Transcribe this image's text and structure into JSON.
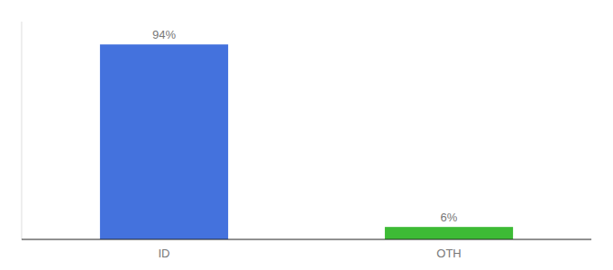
{
  "chart_data": {
    "type": "bar",
    "categories": [
      "ID",
      "OTH"
    ],
    "values": [
      94,
      6
    ],
    "value_labels": [
      "94%",
      "6%"
    ],
    "colors": [
      "#4472dd",
      "#3dbb35"
    ],
    "ylim": [
      0,
      105
    ],
    "data_labels": true,
    "tick_labels": "x"
  }
}
